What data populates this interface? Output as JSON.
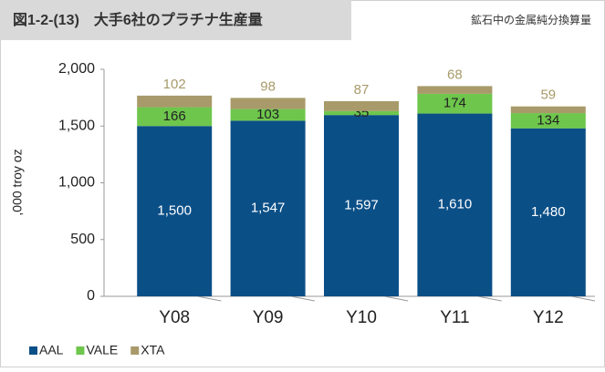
{
  "chart_data": {
    "type": "stacked_bar",
    "title": "図1-2-(13)　大手6社のプラチナ生産量",
    "subtitle": "鉱石中の金属純分換算量",
    "y_label": ",000 troy oz",
    "categories": [
      "Y08",
      "Y09",
      "Y10",
      "Y11",
      "Y12"
    ],
    "series": [
      {
        "name": "AAL",
        "color": "#0b4f87",
        "values": [
          1500,
          1547,
          1597,
          1610,
          1480
        ],
        "value_labels": [
          "1,500",
          "1,547",
          "1,597",
          "1,610",
          "1,480"
        ]
      },
      {
        "name": "VALE",
        "color": "#6ec64c",
        "values": [
          166,
          103,
          35,
          174,
          134
        ]
      },
      {
        "name": "XTA",
        "color": "#a89a6a",
        "values": [
          102,
          98,
          87,
          68,
          59
        ]
      }
    ],
    "ylim": [
      0,
      2000
    ],
    "yticks": [
      0,
      500,
      {
        "value": 1000,
        "label": "1,000"
      },
      {
        "value": 1500,
        "label": "1,500"
      },
      {
        "value": 2000,
        "label": "2,000"
      }
    ],
    "legend": "bottom-left"
  }
}
